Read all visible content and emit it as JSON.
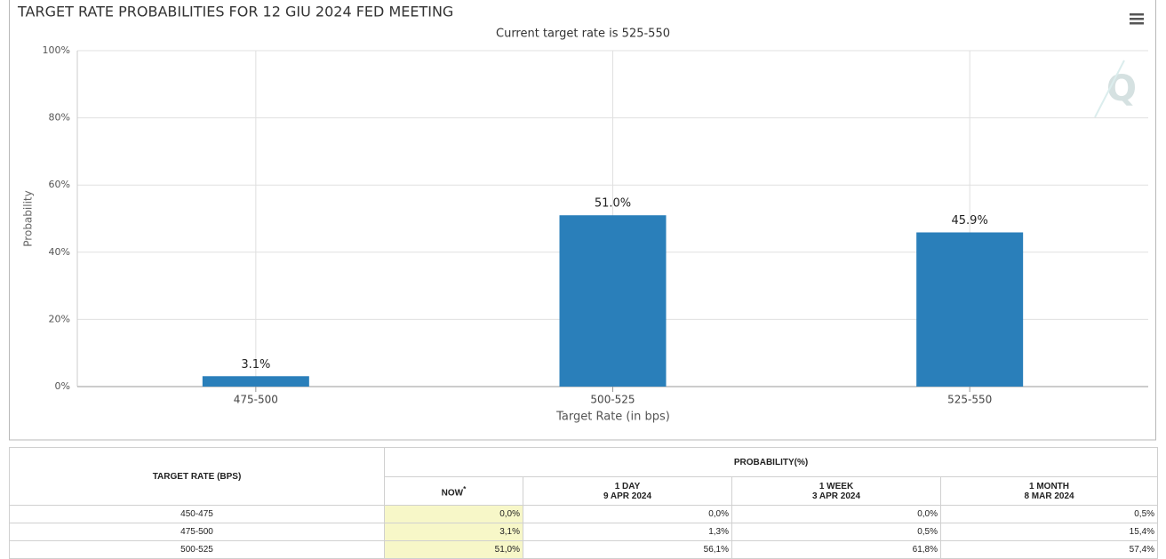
{
  "chart_data": {
    "type": "bar",
    "title": "TARGET RATE PROBABILITIES FOR 12 GIU 2024 FED MEETING",
    "subtitle": "Current target rate is 525-550",
    "y_label": "Probability",
    "x_label": "Target Rate (in bps)",
    "categories": [
      "475-500",
      "500-525",
      "525-550"
    ],
    "values": [
      3.1,
      51.0,
      45.9
    ],
    "value_labels": [
      "3.1%",
      "51.0%",
      "45.9%"
    ],
    "color": "#2a7fba",
    "ylim": [
      0,
      100
    ],
    "yticks": [
      {
        "value": 0,
        "label": "0%"
      },
      {
        "value": 20,
        "label": "20%"
      },
      {
        "value": 40,
        "label": "40%"
      },
      {
        "value": 60,
        "label": "60%"
      },
      {
        "value": 80,
        "label": "80%"
      },
      {
        "value": 100,
        "label": "100%"
      }
    ],
    "grid": true
  },
  "table": {
    "header": "TARGET RATE (BPS)",
    "group_header": "PROBABILITY(%)",
    "columns": [
      {
        "line1": "NOW",
        "note": "*"
      },
      {
        "line1": "1 DAY",
        "line2": "9 APR 2024"
      },
      {
        "line1": "1 WEEK",
        "line2": "3 APR 2024"
      },
      {
        "line1": "1 MONTH",
        "line2": "8 MAR 2024"
      }
    ],
    "rows": [
      [
        "450-475",
        "0,0%",
        "0,0%",
        "0,0%",
        "0,5%"
      ],
      [
        "475-500",
        "3,1%",
        "1,3%",
        "0,5%",
        "15,4%"
      ],
      [
        "500-525",
        "51,0%",
        "56,1%",
        "61,8%",
        "57,4%"
      ]
    ]
  }
}
